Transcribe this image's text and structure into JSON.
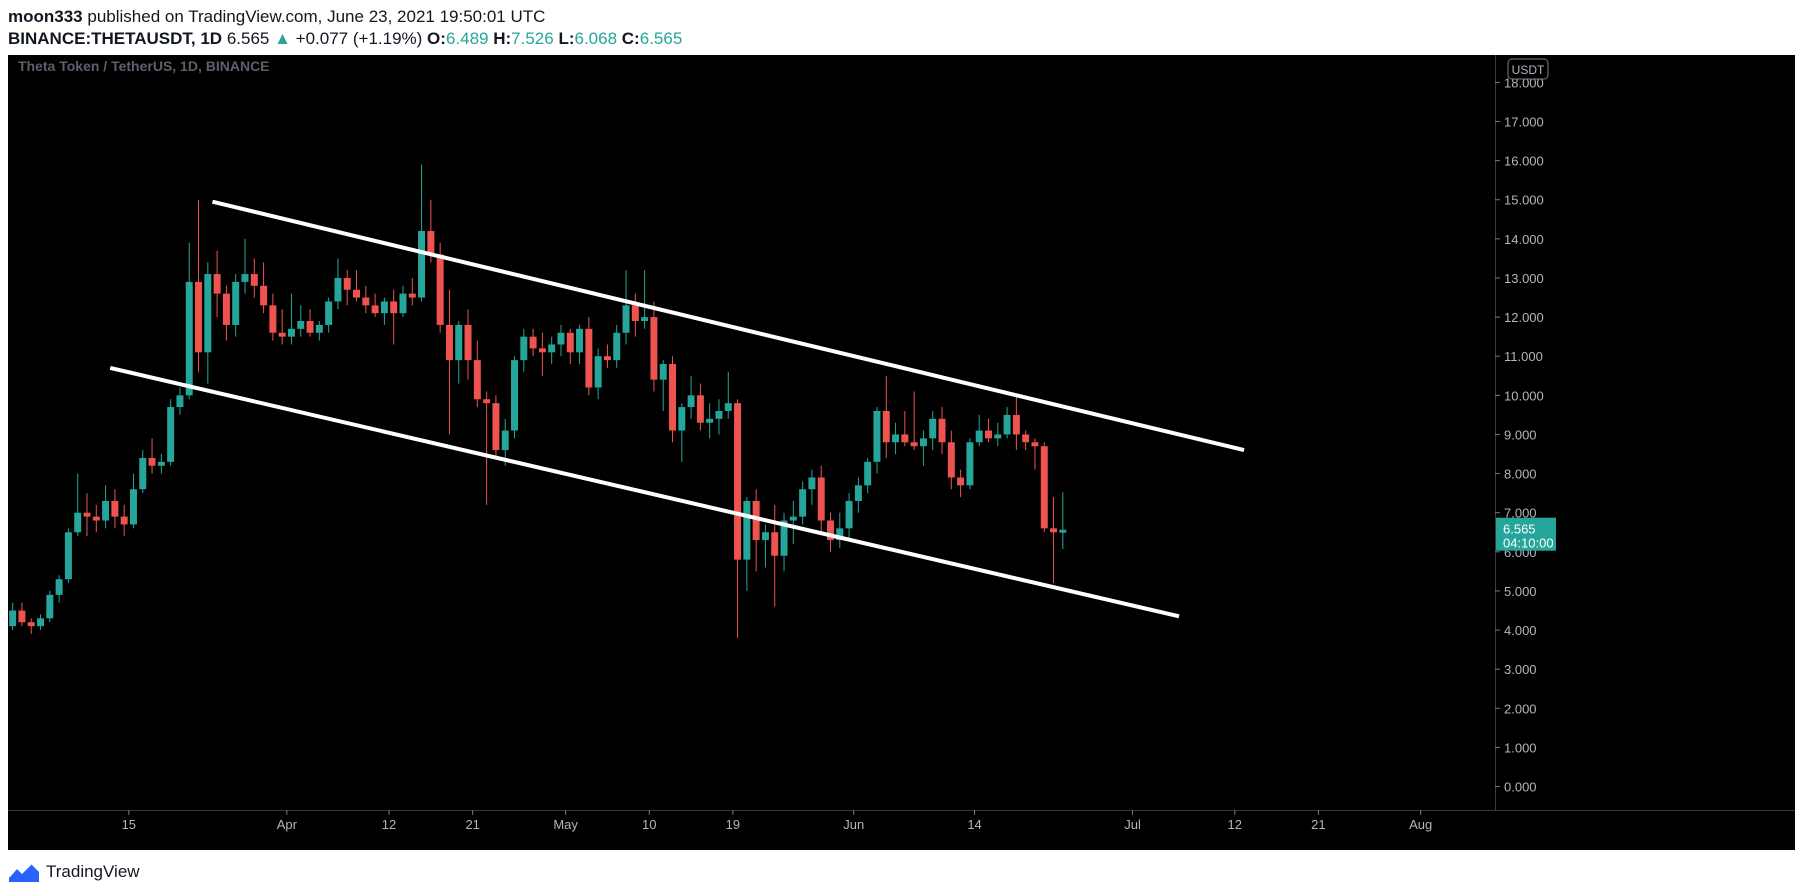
{
  "header": {
    "author": "moon333",
    "published": "published on TradingView.com, June 23, 2021 19:50:01 UTC",
    "symbol": "BINANCE:THETAUSDT, 1D",
    "last": "6.565",
    "change_arrow": "▲",
    "change": "+0.077 (+1.19%)",
    "o_label": "O:",
    "o": "6.489",
    "h_label": "H:",
    "h": "7.526",
    "l_label": "L:",
    "l": "6.068",
    "c_label": "C:",
    "c": "6.565"
  },
  "footer": {
    "brand": "TradingView",
    "logo_icon": "tradingview-logo-icon"
  },
  "colors": {
    "up": "#26a69a",
    "down": "#ef5350",
    "background": "#000000",
    "axis_text": "#b2b5be",
    "channel": "#ffffff",
    "price_label_bg": "#26a69a"
  },
  "chart_data": {
    "type": "candlestick",
    "title": "Theta Token / TetherUS, 1D, BINANCE",
    "currency": "USDT",
    "ylim": [
      -0.6,
      18.7
    ],
    "yticks": [
      "0.000",
      "1.000",
      "2.000",
      "3.000",
      "4.000",
      "5.000",
      "6.000",
      "7.000",
      "8.000",
      "9.000",
      "10.000",
      "11.000",
      "12.000",
      "13.000",
      "14.000",
      "15.000",
      "16.000",
      "17.000",
      "18.000"
    ],
    "x_start": "2021-03-02",
    "x_end": "2021-08-09",
    "xticks": [
      {
        "label": "15",
        "date": "2021-03-15"
      },
      {
        "label": "Apr",
        "date": "2021-04-01"
      },
      {
        "label": "12",
        "date": "2021-04-12"
      },
      {
        "label": "21",
        "date": "2021-04-21"
      },
      {
        "label": "May",
        "date": "2021-05-01"
      },
      {
        "label": "10",
        "date": "2021-05-10"
      },
      {
        "label": "19",
        "date": "2021-05-19"
      },
      {
        "label": "Jun",
        "date": "2021-06-01"
      },
      {
        "label": "14",
        "date": "2021-06-14"
      },
      {
        "label": "Jul",
        "date": "2021-07-01"
      },
      {
        "label": "12",
        "date": "2021-07-12"
      },
      {
        "label": "21",
        "date": "2021-07-21"
      },
      {
        "label": "Aug",
        "date": "2021-08-01"
      }
    ],
    "last_price": {
      "value": 6.565,
      "label": "6.565",
      "countdown": "04:10:00"
    },
    "channel_lines": [
      {
        "from": {
          "date": "2021-03-24",
          "price": 14.95
        },
        "to": {
          "date": "2021-07-13",
          "price": 8.6
        }
      },
      {
        "from": {
          "date": "2021-03-13",
          "price": 10.7
        },
        "to": {
          "date": "2021-07-06",
          "price": 4.35
        }
      }
    ],
    "candles": [
      {
        "date": "2021-03-02",
        "o": 4.1,
        "h": 4.7,
        "l": 4.0,
        "c": 4.5
      },
      {
        "date": "2021-03-03",
        "o": 4.5,
        "h": 4.7,
        "l": 4.1,
        "c": 4.2
      },
      {
        "date": "2021-03-04",
        "o": 4.2,
        "h": 4.3,
        "l": 3.9,
        "c": 4.1
      },
      {
        "date": "2021-03-05",
        "o": 4.1,
        "h": 4.4,
        "l": 4.0,
        "c": 4.3
      },
      {
        "date": "2021-03-06",
        "o": 4.3,
        "h": 5.0,
        "l": 4.2,
        "c": 4.9
      },
      {
        "date": "2021-03-07",
        "o": 4.9,
        "h": 5.4,
        "l": 4.7,
        "c": 5.3
      },
      {
        "date": "2021-03-08",
        "o": 5.3,
        "h": 6.6,
        "l": 5.2,
        "c": 6.5
      },
      {
        "date": "2021-03-09",
        "o": 6.5,
        "h": 8.0,
        "l": 6.4,
        "c": 7.0
      },
      {
        "date": "2021-03-10",
        "o": 7.0,
        "h": 7.5,
        "l": 6.4,
        "c": 6.9
      },
      {
        "date": "2021-03-11",
        "o": 6.9,
        "h": 7.2,
        "l": 6.5,
        "c": 6.8
      },
      {
        "date": "2021-03-12",
        "o": 6.8,
        "h": 7.7,
        "l": 6.6,
        "c": 7.3
      },
      {
        "date": "2021-03-13",
        "o": 7.3,
        "h": 7.6,
        "l": 6.6,
        "c": 6.9
      },
      {
        "date": "2021-03-14",
        "o": 6.9,
        "h": 7.2,
        "l": 6.4,
        "c": 6.7
      },
      {
        "date": "2021-03-15",
        "o": 6.7,
        "h": 8.0,
        "l": 6.6,
        "c": 7.6
      },
      {
        "date": "2021-03-16",
        "o": 7.6,
        "h": 8.6,
        "l": 7.5,
        "c": 8.4
      },
      {
        "date": "2021-03-17",
        "o": 8.4,
        "h": 8.9,
        "l": 8.0,
        "c": 8.2
      },
      {
        "date": "2021-03-18",
        "o": 8.2,
        "h": 8.5,
        "l": 8.0,
        "c": 8.3
      },
      {
        "date": "2021-03-19",
        "o": 8.3,
        "h": 9.9,
        "l": 8.2,
        "c": 9.7
      },
      {
        "date": "2021-03-20",
        "o": 9.7,
        "h": 10.2,
        "l": 9.5,
        "c": 10.0
      },
      {
        "date": "2021-03-21",
        "o": 10.0,
        "h": 13.9,
        "l": 9.9,
        "c": 12.9
      },
      {
        "date": "2021-03-22",
        "o": 12.9,
        "h": 15.0,
        "l": 10.6,
        "c": 11.1
      },
      {
        "date": "2021-03-23",
        "o": 11.1,
        "h": 13.4,
        "l": 10.3,
        "c": 13.1
      },
      {
        "date": "2021-03-24",
        "o": 13.1,
        "h": 13.7,
        "l": 12.0,
        "c": 12.6
      },
      {
        "date": "2021-03-25",
        "o": 12.6,
        "h": 12.8,
        "l": 11.4,
        "c": 11.8
      },
      {
        "date": "2021-03-26",
        "o": 11.8,
        "h": 13.1,
        "l": 11.5,
        "c": 12.9
      },
      {
        "date": "2021-03-27",
        "o": 12.9,
        "h": 14.0,
        "l": 12.6,
        "c": 13.1
      },
      {
        "date": "2021-03-28",
        "o": 13.1,
        "h": 13.5,
        "l": 12.5,
        "c": 12.8
      },
      {
        "date": "2021-03-29",
        "o": 12.8,
        "h": 13.4,
        "l": 12.1,
        "c": 12.3
      },
      {
        "date": "2021-03-30",
        "o": 12.3,
        "h": 12.6,
        "l": 11.4,
        "c": 11.6
      },
      {
        "date": "2021-03-31",
        "o": 11.6,
        "h": 12.2,
        "l": 11.3,
        "c": 11.5
      },
      {
        "date": "2021-04-01",
        "o": 11.5,
        "h": 12.6,
        "l": 11.3,
        "c": 11.7
      },
      {
        "date": "2021-04-02",
        "o": 11.7,
        "h": 12.3,
        "l": 11.5,
        "c": 11.9
      },
      {
        "date": "2021-04-03",
        "o": 11.9,
        "h": 12.2,
        "l": 11.5,
        "c": 11.6
      },
      {
        "date": "2021-04-04",
        "o": 11.6,
        "h": 11.9,
        "l": 11.4,
        "c": 11.8
      },
      {
        "date": "2021-04-05",
        "o": 11.8,
        "h": 12.5,
        "l": 11.6,
        "c": 12.4
      },
      {
        "date": "2021-04-06",
        "o": 12.4,
        "h": 13.5,
        "l": 12.2,
        "c": 13.0
      },
      {
        "date": "2021-04-07",
        "o": 13.0,
        "h": 13.2,
        "l": 12.3,
        "c": 12.7
      },
      {
        "date": "2021-04-08",
        "o": 12.7,
        "h": 13.2,
        "l": 12.4,
        "c": 12.5
      },
      {
        "date": "2021-04-09",
        "o": 12.5,
        "h": 12.8,
        "l": 12.1,
        "c": 12.3
      },
      {
        "date": "2021-04-10",
        "o": 12.3,
        "h": 12.6,
        "l": 12.0,
        "c": 12.1
      },
      {
        "date": "2021-04-11",
        "o": 12.1,
        "h": 12.5,
        "l": 11.8,
        "c": 12.4
      },
      {
        "date": "2021-04-12",
        "o": 12.4,
        "h": 12.7,
        "l": 11.3,
        "c": 12.1
      },
      {
        "date": "2021-04-13",
        "o": 12.1,
        "h": 12.8,
        "l": 12.0,
        "c": 12.6
      },
      {
        "date": "2021-04-14",
        "o": 12.6,
        "h": 13.0,
        "l": 12.3,
        "c": 12.5
      },
      {
        "date": "2021-04-15",
        "o": 12.5,
        "h": 15.9,
        "l": 12.4,
        "c": 14.2
      },
      {
        "date": "2021-04-16",
        "o": 14.2,
        "h": 15.0,
        "l": 13.4,
        "c": 13.6
      },
      {
        "date": "2021-04-17",
        "o": 13.6,
        "h": 13.9,
        "l": 11.6,
        "c": 11.8
      },
      {
        "date": "2021-04-18",
        "o": 11.8,
        "h": 12.7,
        "l": 9.0,
        "c": 10.9
      },
      {
        "date": "2021-04-19",
        "o": 10.9,
        "h": 11.9,
        "l": 10.3,
        "c": 11.8
      },
      {
        "date": "2021-04-20",
        "o": 11.8,
        "h": 12.2,
        "l": 10.4,
        "c": 10.9
      },
      {
        "date": "2021-04-21",
        "o": 10.9,
        "h": 11.4,
        "l": 9.7,
        "c": 9.9
      },
      {
        "date": "2021-04-22",
        "o": 9.9,
        "h": 10.1,
        "l": 7.2,
        "c": 9.8
      },
      {
        "date": "2021-04-23",
        "o": 9.8,
        "h": 10.0,
        "l": 8.4,
        "c": 8.6
      },
      {
        "date": "2021-04-24",
        "o": 8.6,
        "h": 9.4,
        "l": 8.2,
        "c": 9.1
      },
      {
        "date": "2021-04-25",
        "o": 9.1,
        "h": 11.0,
        "l": 8.9,
        "c": 10.9
      },
      {
        "date": "2021-04-26",
        "o": 10.9,
        "h": 11.7,
        "l": 10.6,
        "c": 11.5
      },
      {
        "date": "2021-04-27",
        "o": 11.5,
        "h": 11.7,
        "l": 11.0,
        "c": 11.2
      },
      {
        "date": "2021-04-28",
        "o": 11.2,
        "h": 11.6,
        "l": 10.5,
        "c": 11.1
      },
      {
        "date": "2021-04-29",
        "o": 11.1,
        "h": 11.5,
        "l": 10.8,
        "c": 11.3
      },
      {
        "date": "2021-04-30",
        "o": 11.3,
        "h": 11.8,
        "l": 11.0,
        "c": 11.6
      },
      {
        "date": "2021-05-01",
        "o": 11.6,
        "h": 11.7,
        "l": 10.8,
        "c": 11.1
      },
      {
        "date": "2021-05-02",
        "o": 11.1,
        "h": 11.8,
        "l": 10.8,
        "c": 11.7
      },
      {
        "date": "2021-05-03",
        "o": 11.7,
        "h": 12.0,
        "l": 10.0,
        "c": 10.2
      },
      {
        "date": "2021-05-04",
        "o": 10.2,
        "h": 11.2,
        "l": 9.9,
        "c": 11.0
      },
      {
        "date": "2021-05-05",
        "o": 11.0,
        "h": 11.3,
        "l": 10.7,
        "c": 10.9
      },
      {
        "date": "2021-05-06",
        "o": 10.9,
        "h": 11.8,
        "l": 10.7,
        "c": 11.6
      },
      {
        "date": "2021-05-07",
        "o": 11.6,
        "h": 13.2,
        "l": 11.3,
        "c": 12.3
      },
      {
        "date": "2021-05-08",
        "o": 12.3,
        "h": 12.6,
        "l": 11.5,
        "c": 11.9
      },
      {
        "date": "2021-05-09",
        "o": 11.9,
        "h": 13.2,
        "l": 11.7,
        "c": 12.0
      },
      {
        "date": "2021-05-10",
        "o": 12.0,
        "h": 12.4,
        "l": 10.1,
        "c": 10.4
      },
      {
        "date": "2021-05-11",
        "o": 10.4,
        "h": 10.9,
        "l": 9.6,
        "c": 10.8
      },
      {
        "date": "2021-05-12",
        "o": 10.8,
        "h": 11.0,
        "l": 8.8,
        "c": 9.1
      },
      {
        "date": "2021-05-13",
        "o": 9.1,
        "h": 9.8,
        "l": 8.3,
        "c": 9.7
      },
      {
        "date": "2021-05-14",
        "o": 9.7,
        "h": 10.5,
        "l": 9.4,
        "c": 10.0
      },
      {
        "date": "2021-05-15",
        "o": 10.0,
        "h": 10.3,
        "l": 9.1,
        "c": 9.3
      },
      {
        "date": "2021-05-16",
        "o": 9.3,
        "h": 9.8,
        "l": 8.9,
        "c": 9.4
      },
      {
        "date": "2021-05-17",
        "o": 9.4,
        "h": 9.9,
        "l": 9.0,
        "c": 9.6
      },
      {
        "date": "2021-05-18",
        "o": 9.6,
        "h": 10.6,
        "l": 9.4,
        "c": 9.8
      },
      {
        "date": "2021-05-19",
        "o": 9.8,
        "h": 9.9,
        "l": 3.8,
        "c": 5.8
      },
      {
        "date": "2021-05-20",
        "o": 5.8,
        "h": 7.4,
        "l": 5.0,
        "c": 7.3
      },
      {
        "date": "2021-05-21",
        "o": 7.3,
        "h": 7.6,
        "l": 5.5,
        "c": 6.3
      },
      {
        "date": "2021-05-22",
        "o": 6.3,
        "h": 6.7,
        "l": 5.6,
        "c": 6.5
      },
      {
        "date": "2021-05-23",
        "o": 6.5,
        "h": 7.2,
        "l": 4.6,
        "c": 5.9
      },
      {
        "date": "2021-05-24",
        "o": 5.9,
        "h": 7.0,
        "l": 5.5,
        "c": 6.8
      },
      {
        "date": "2021-05-25",
        "o": 6.8,
        "h": 7.3,
        "l": 6.2,
        "c": 6.9
      },
      {
        "date": "2021-05-26",
        "o": 6.9,
        "h": 7.8,
        "l": 6.7,
        "c": 7.6
      },
      {
        "date": "2021-05-27",
        "o": 7.6,
        "h": 8.1,
        "l": 7.2,
        "c": 7.9
      },
      {
        "date": "2021-05-28",
        "o": 7.9,
        "h": 8.2,
        "l": 6.5,
        "c": 6.8
      },
      {
        "date": "2021-05-29",
        "o": 6.8,
        "h": 7.0,
        "l": 6.0,
        "c": 6.3
      },
      {
        "date": "2021-05-30",
        "o": 6.3,
        "h": 7.0,
        "l": 6.1,
        "c": 6.6
      },
      {
        "date": "2021-05-31",
        "o": 6.6,
        "h": 7.5,
        "l": 6.3,
        "c": 7.3
      },
      {
        "date": "2021-06-01",
        "o": 7.3,
        "h": 7.9,
        "l": 7.0,
        "c": 7.7
      },
      {
        "date": "2021-06-02",
        "o": 7.7,
        "h": 8.4,
        "l": 7.5,
        "c": 8.3
      },
      {
        "date": "2021-06-03",
        "o": 8.3,
        "h": 9.7,
        "l": 8.0,
        "c": 9.6
      },
      {
        "date": "2021-06-04",
        "o": 9.6,
        "h": 10.5,
        "l": 8.4,
        "c": 8.8
      },
      {
        "date": "2021-06-05",
        "o": 8.8,
        "h": 9.3,
        "l": 8.5,
        "c": 9.0
      },
      {
        "date": "2021-06-06",
        "o": 9.0,
        "h": 9.6,
        "l": 8.7,
        "c": 8.8
      },
      {
        "date": "2021-06-07",
        "o": 8.8,
        "h": 10.1,
        "l": 8.6,
        "c": 8.7
      },
      {
        "date": "2021-06-08",
        "o": 8.7,
        "h": 9.1,
        "l": 8.2,
        "c": 8.9
      },
      {
        "date": "2021-06-09",
        "o": 8.9,
        "h": 9.6,
        "l": 8.6,
        "c": 9.4
      },
      {
        "date": "2021-06-10",
        "o": 9.4,
        "h": 9.7,
        "l": 8.5,
        "c": 8.8
      },
      {
        "date": "2021-06-11",
        "o": 8.8,
        "h": 9.1,
        "l": 7.6,
        "c": 7.9
      },
      {
        "date": "2021-06-12",
        "o": 7.9,
        "h": 8.1,
        "l": 7.4,
        "c": 7.7
      },
      {
        "date": "2021-06-13",
        "o": 7.7,
        "h": 8.9,
        "l": 7.6,
        "c": 8.8
      },
      {
        "date": "2021-06-14",
        "o": 8.8,
        "h": 9.5,
        "l": 8.7,
        "c": 9.1
      },
      {
        "date": "2021-06-15",
        "o": 9.1,
        "h": 9.4,
        "l": 8.8,
        "c": 8.9
      },
      {
        "date": "2021-06-16",
        "o": 8.9,
        "h": 9.3,
        "l": 8.7,
        "c": 9.0
      },
      {
        "date": "2021-06-17",
        "o": 9.0,
        "h": 9.7,
        "l": 8.9,
        "c": 9.5
      },
      {
        "date": "2021-06-18",
        "o": 9.5,
        "h": 10.0,
        "l": 8.6,
        "c": 9.0
      },
      {
        "date": "2021-06-19",
        "o": 9.0,
        "h": 9.1,
        "l": 8.6,
        "c": 8.8
      },
      {
        "date": "2021-06-20",
        "o": 8.8,
        "h": 8.9,
        "l": 8.1,
        "c": 8.7
      },
      {
        "date": "2021-06-21",
        "o": 8.7,
        "h": 8.8,
        "l": 6.5,
        "c": 6.6
      },
      {
        "date": "2021-06-22",
        "o": 6.6,
        "h": 7.4,
        "l": 5.2,
        "c": 6.5
      },
      {
        "date": "2021-06-23",
        "o": 6.49,
        "h": 7.526,
        "l": 6.068,
        "c": 6.565
      }
    ]
  }
}
